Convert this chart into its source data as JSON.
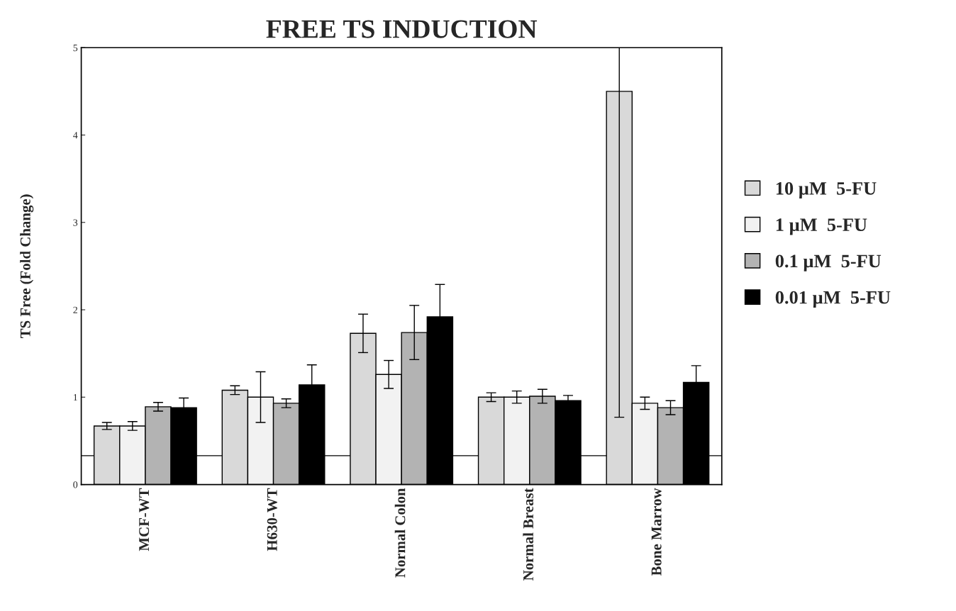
{
  "chart_data": {
    "type": "bar",
    "title": "FREE TS INDUCTION",
    "ylabel": "TS Free (Fold Change)",
    "categories": [
      "MCF-WT",
      "H630-WT",
      "Normal Colon",
      "Normal Breast",
      "Bone Marrow"
    ],
    "series": [
      {
        "name": "10 µM  5-FU",
        "color": "#d9d9d9",
        "values": [
          0.67,
          1.08,
          1.73,
          1.0,
          4.5
        ],
        "errors": [
          0.04,
          0.05,
          0.22,
          0.05,
          [
            0.77,
            5.0
          ]
        ]
      },
      {
        "name": "1 µM  5-FU",
        "color": "#f2f2f2",
        "values": [
          0.67,
          1.0,
          1.26,
          1.0,
          0.93
        ],
        "errors": [
          0.05,
          0.29,
          0.16,
          0.07,
          0.07
        ]
      },
      {
        "name": "0.1 µM  5-FU",
        "color": "#b3b3b3",
        "values": [
          0.89,
          0.93,
          1.74,
          1.01,
          0.88
        ],
        "errors": [
          0.05,
          0.05,
          0.31,
          0.08,
          0.08
        ]
      },
      {
        "name": "0.01 µM  5-FU",
        "color": "#000000",
        "values": [
          0.88,
          1.14,
          1.92,
          0.96,
          1.17
        ],
        "errors": [
          0.11,
          0.23,
          0.37,
          0.06,
          0.19
        ]
      }
    ],
    "ylim": [
      0,
      5
    ],
    "yticks": [
      0,
      1,
      2,
      3,
      4,
      5
    ],
    "grid": false,
    "legend": "right",
    "ref_lines": [
      {
        "axis": "y",
        "value": 0.33,
        "color": "#000000"
      }
    ]
  }
}
